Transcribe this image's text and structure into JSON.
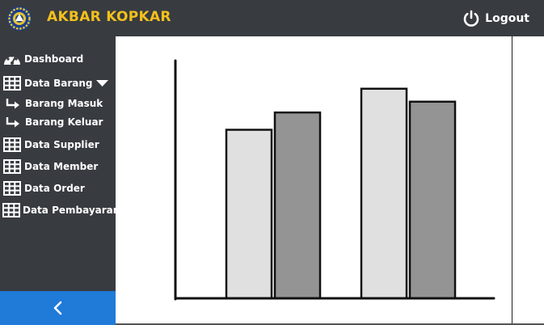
{
  "header": {
    "app_title": "AKBAR KOPKAR",
    "logout_label": "Logout"
  },
  "sidebar": {
    "items": [
      {
        "label": "Dashboard",
        "icon": "dashboard-icon"
      },
      {
        "label": "Data Barang",
        "icon": "grid-icon",
        "expanded": true
      },
      {
        "label": "Barang Masuk",
        "icon": "arrow-right-icon",
        "sub": true
      },
      {
        "label": "Barang Keluar",
        "icon": "arrow-right-icon",
        "sub": true
      },
      {
        "label": "Data Supplier",
        "icon": "grid-icon"
      },
      {
        "label": "Data Member",
        "icon": "grid-icon"
      },
      {
        "label": "Data Order",
        "icon": "grid-icon"
      },
      {
        "label": "Data Pembayaran",
        "icon": "grid-icon"
      }
    ],
    "collapse_icon": "chevron-left-icon"
  },
  "colors": {
    "topbar": "#383b40",
    "sidebar": "#383b40",
    "accent": "#1f7ad8",
    "title": "#f3c01b",
    "series_light": "#e0e0e0",
    "series_dark": "#949494"
  },
  "chart_data": {
    "type": "bar",
    "categories": [
      "",
      ""
    ],
    "series": [
      {
        "name": "",
        "values": [
          78,
          97
        ]
      },
      {
        "name": "",
        "values": [
          86,
          91
        ]
      }
    ],
    "title": "",
    "xlabel": "",
    "ylabel": "",
    "ylim": [
      0,
      110
    ]
  }
}
